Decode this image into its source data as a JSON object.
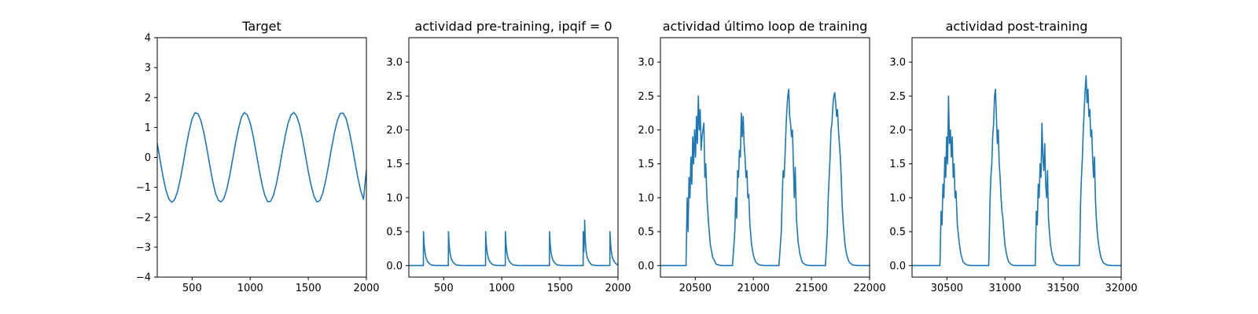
{
  "colors": {
    "line": "#1f77b4",
    "axes": "#000000",
    "background": "#ffffff"
  },
  "chart_data": [
    {
      "type": "line",
      "title": "Target",
      "xlabel": "",
      "ylabel": "",
      "xlim": [
        200,
        2000
      ],
      "ylim": [
        -4,
        4
      ],
      "xticks": [
        500,
        1000,
        1500,
        2000
      ],
      "yticks": [
        -4,
        -3,
        -2,
        -1,
        0,
        1,
        2,
        3,
        4
      ],
      "grid": false,
      "series": [
        {
          "description": "sinusoid, amplitude 1.5, period ~400",
          "x": [
            200,
            225,
            250,
            275,
            300,
            325,
            350,
            375,
            400,
            425,
            450,
            475,
            500,
            525,
            550,
            575,
            600,
            625,
            650,
            675,
            700,
            725,
            750,
            775,
            800,
            825,
            850,
            875,
            900,
            925,
            950,
            975,
            1000,
            1025,
            1050,
            1075,
            1100,
            1125,
            1150,
            1175,
            1200,
            1225,
            1250,
            1275,
            1300,
            1325,
            1350,
            1375,
            1400,
            1425,
            1450,
            1475,
            1500,
            1525,
            1550,
            1575,
            1600,
            1625,
            1650,
            1675,
            1700,
            1725,
            1750,
            1775,
            1800,
            1825,
            1850,
            1875,
            1900,
            1925,
            1950,
            1975,
            2000
          ],
          "y": [
            0.47,
            -0.1,
            -0.65,
            -1.1,
            -1.39,
            -1.5,
            -1.41,
            -1.13,
            -0.7,
            -0.17,
            0.39,
            0.89,
            1.29,
            1.49,
            1.46,
            1.24,
            0.85,
            0.34,
            -0.22,
            -0.75,
            -1.18,
            -1.43,
            -1.49,
            -1.36,
            -1.04,
            -0.58,
            -0.04,
            0.51,
            0.98,
            1.35,
            1.5,
            1.42,
            1.15,
            0.72,
            0.19,
            -0.36,
            -0.87,
            -1.26,
            -1.48,
            -1.47,
            -1.27,
            -0.89,
            -0.39,
            0.16,
            0.69,
            1.13,
            1.41,
            1.5,
            1.38,
            1.07,
            0.62,
            0.08,
            -0.47,
            -0.95,
            -1.31,
            -1.49,
            -1.44,
            -1.19,
            -0.77,
            -0.25,
            0.31,
            0.82,
            1.23,
            1.47,
            1.48,
            1.3,
            0.93,
            0.44,
            -0.11,
            -0.65,
            -1.1,
            -1.4,
            -0.42
          ]
        }
      ]
    },
    {
      "type": "line",
      "title": "actividad pre-training, ipqif = 0",
      "xlabel": "",
      "ylabel": "",
      "xlim": [
        200,
        2000
      ],
      "ylim": [
        -0.17,
        3.36
      ],
      "xticks": [
        500,
        1000,
        1500,
        2000
      ],
      "yticks": [
        0.0,
        0.5,
        1.0,
        1.5,
        2.0,
        2.5,
        3.0
      ],
      "grid": false,
      "series": [
        {
          "description": "sparse spikes with exponential decay",
          "x": [
            200,
            325,
            326,
            332,
            340,
            350,
            365,
            390,
            430,
            540,
            541,
            547,
            555,
            565,
            580,
            605,
            650,
            860,
            861,
            867,
            875,
            885,
            900,
            925,
            970,
            1030,
            1031,
            1037,
            1045,
            1055,
            1070,
            1095,
            1140,
            1410,
            1411,
            1417,
            1425,
            1435,
            1450,
            1475,
            1520,
            1700,
            1701,
            1706,
            1712,
            1713,
            1718,
            1725,
            1735,
            1750,
            1775,
            1820,
            1930,
            1931,
            1937,
            1945,
            1955,
            1970,
            1995,
            2000
          ],
          "y": [
            0,
            0,
            0.5,
            0.3,
            0.18,
            0.1,
            0.05,
            0.01,
            0,
            0,
            0.5,
            0.3,
            0.18,
            0.1,
            0.05,
            0.01,
            0,
            0,
            0.5,
            0.3,
            0.18,
            0.1,
            0.05,
            0.01,
            0,
            0,
            0.5,
            0.3,
            0.18,
            0.1,
            0.05,
            0.01,
            0,
            0,
            0.5,
            0.3,
            0.18,
            0.1,
            0.05,
            0.01,
            0,
            0,
            0.5,
            0.2,
            0.45,
            0.67,
            0.4,
            0.22,
            0.12,
            0.06,
            0.01,
            0,
            0,
            0.5,
            0.3,
            0.18,
            0.1,
            0.05,
            0.01,
            0.01
          ]
        }
      ]
    },
    {
      "type": "line",
      "title": "actividad último loop de training",
      "xlabel": "",
      "ylabel": "",
      "xlim": [
        20200,
        22000
      ],
      "ylim": [
        -0.17,
        3.36
      ],
      "xticks": [
        20500,
        21000,
        21500,
        22000
      ],
      "yticks": [
        0.0,
        0.5,
        1.0,
        1.5,
        2.0,
        2.5,
        3.0
      ],
      "grid": false,
      "series": [
        {
          "description": "four noisy activity bursts",
          "x": [
            20200,
            20420,
            20424,
            20430,
            20438,
            20446,
            20454,
            20462,
            20470,
            20478,
            20486,
            20494,
            20502,
            20510,
            20518,
            20526,
            20534,
            20542,
            20550,
            20558,
            20566,
            20574,
            20582,
            20590,
            20600,
            20615,
            20630,
            20650,
            20680,
            20720,
            20820,
            20840,
            20848,
            20856,
            20864,
            20872,
            20880,
            20888,
            20896,
            20904,
            20912,
            20920,
            20928,
            20936,
            20944,
            20952,
            20960,
            20970,
            20985,
            21000,
            21020,
            21050,
            21090,
            21220,
            21240,
            21248,
            21256,
            21264,
            21272,
            21280,
            21288,
            21296,
            21304,
            21312,
            21320,
            21328,
            21336,
            21344,
            21352,
            21360,
            21370,
            21385,
            21400,
            21420,
            21450,
            21490,
            21620,
            21636,
            21644,
            21652,
            21660,
            21668,
            21676,
            21684,
            21692,
            21700,
            21708,
            21716,
            21724,
            21732,
            21740,
            21748,
            21756,
            21764,
            21774,
            21789,
            21804,
            21824,
            21854,
            21894,
            22000
          ],
          "y": [
            0,
            0,
            0.4,
            1.0,
            0.5,
            1.3,
            1.0,
            1.6,
            1.2,
            1.9,
            1.5,
            2.0,
            1.6,
            2.2,
            1.8,
            2.5,
            2.0,
            2.3,
            1.7,
            1.9,
            2.0,
            2.1,
            1.3,
            1.5,
            1.0,
            0.6,
            0.3,
            0.12,
            0.02,
            0,
            0,
            0.5,
            1.0,
            0.7,
            1.4,
            1.3,
            1.7,
            1.6,
            2.25,
            1.9,
            2.2,
            1.8,
            1.6,
            1.3,
            1.4,
            1.0,
            1.05,
            0.6,
            0.3,
            0.15,
            0.05,
            0.01,
            0,
            0,
            0.5,
            1.0,
            1.4,
            1.3,
            1.6,
            2.0,
            2.3,
            2.5,
            2.6,
            2.2,
            2.1,
            1.9,
            2.0,
            1.5,
            1.0,
            1.45,
            0.7,
            0.35,
            0.17,
            0.05,
            0.01,
            0,
            0,
            0.5,
            1.0,
            1.3,
            1.6,
            2.0,
            2.1,
            2.35,
            2.5,
            2.55,
            2.4,
            2.2,
            2.3,
            2.0,
            1.8,
            1.6,
            1.3,
            0.9,
            0.6,
            0.3,
            0.15,
            0.05,
            0.01,
            0,
            0
          ]
        }
      ]
    },
    {
      "type": "line",
      "title": "actividad post-training",
      "xlabel": "",
      "ylabel": "",
      "xlim": [
        30200,
        32000
      ],
      "ylim": [
        -0.17,
        3.36
      ],
      "xticks": [
        30500,
        31000,
        31500,
        32000
      ],
      "yticks": [
        0.0,
        0.5,
        1.0,
        1.5,
        2.0,
        2.5,
        3.0
      ],
      "grid": false,
      "series": [
        {
          "description": "four noisy activity bursts",
          "x": [
            30200,
            30440,
            30444,
            30450,
            30458,
            30466,
            30474,
            30482,
            30490,
            30498,
            30506,
            30514,
            30522,
            30530,
            30538,
            30546,
            30554,
            30562,
            30570,
            30578,
            30590,
            30605,
            30620,
            30640,
            30670,
            30710,
            30860,
            30864,
            30870,
            30878,
            30886,
            30894,
            30902,
            30910,
            30918,
            30926,
            30934,
            30942,
            30950,
            30958,
            30966,
            30974,
            30982,
            30990,
            31000,
            31015,
            31030,
            31050,
            31080,
            31120,
            31260,
            31264,
            31270,
            31278,
            31286,
            31294,
            31302,
            31310,
            31318,
            31326,
            31334,
            31342,
            31350,
            31358,
            31366,
            31374,
            31382,
            31392,
            31407,
            31422,
            31442,
            31472,
            31512,
            31640,
            31644,
            31650,
            31658,
            31666,
            31674,
            31682,
            31690,
            31698,
            31706,
            31714,
            31722,
            31730,
            31738,
            31746,
            31754,
            31762,
            31770,
            31778,
            31786,
            31796,
            31811,
            31826,
            31846,
            31876,
            31916,
            32000
          ],
          "y": [
            0,
            0,
            0.3,
            0.8,
            0.6,
            1.2,
            1.0,
            1.6,
            1.3,
            1.9,
            1.5,
            2.5,
            1.8,
            2.0,
            1.6,
            1.9,
            1.3,
            1.5,
            1.0,
            1.1,
            0.6,
            0.35,
            0.17,
            0.05,
            0.01,
            0,
            0,
            0.3,
            0.9,
            1.3,
            1.5,
            1.9,
            2.1,
            2.5,
            2.6,
            2.2,
            1.8,
            2.0,
            1.5,
            1.3,
            1.0,
            0.8,
            0.7,
            0.5,
            0.3,
            0.15,
            0.06,
            0.02,
            0,
            0,
            0,
            0.3,
            0.8,
            0.6,
            1.2,
            1.0,
            1.5,
            1.3,
            2.1,
            1.6,
            1.4,
            1.8,
            1.2,
            1.0,
            1.4,
            0.7,
            0.5,
            0.3,
            0.15,
            0.06,
            0.02,
            0,
            0,
            0,
            0.3,
            0.9,
            1.3,
            1.6,
            2.0,
            2.3,
            2.6,
            2.8,
            2.4,
            2.6,
            2.2,
            2.3,
            1.9,
            2.0,
            1.6,
            1.3,
            1.6,
            1.0,
            0.7,
            0.45,
            0.25,
            0.12,
            0.04,
            0.01,
            0,
            0
          ]
        }
      ]
    }
  ]
}
